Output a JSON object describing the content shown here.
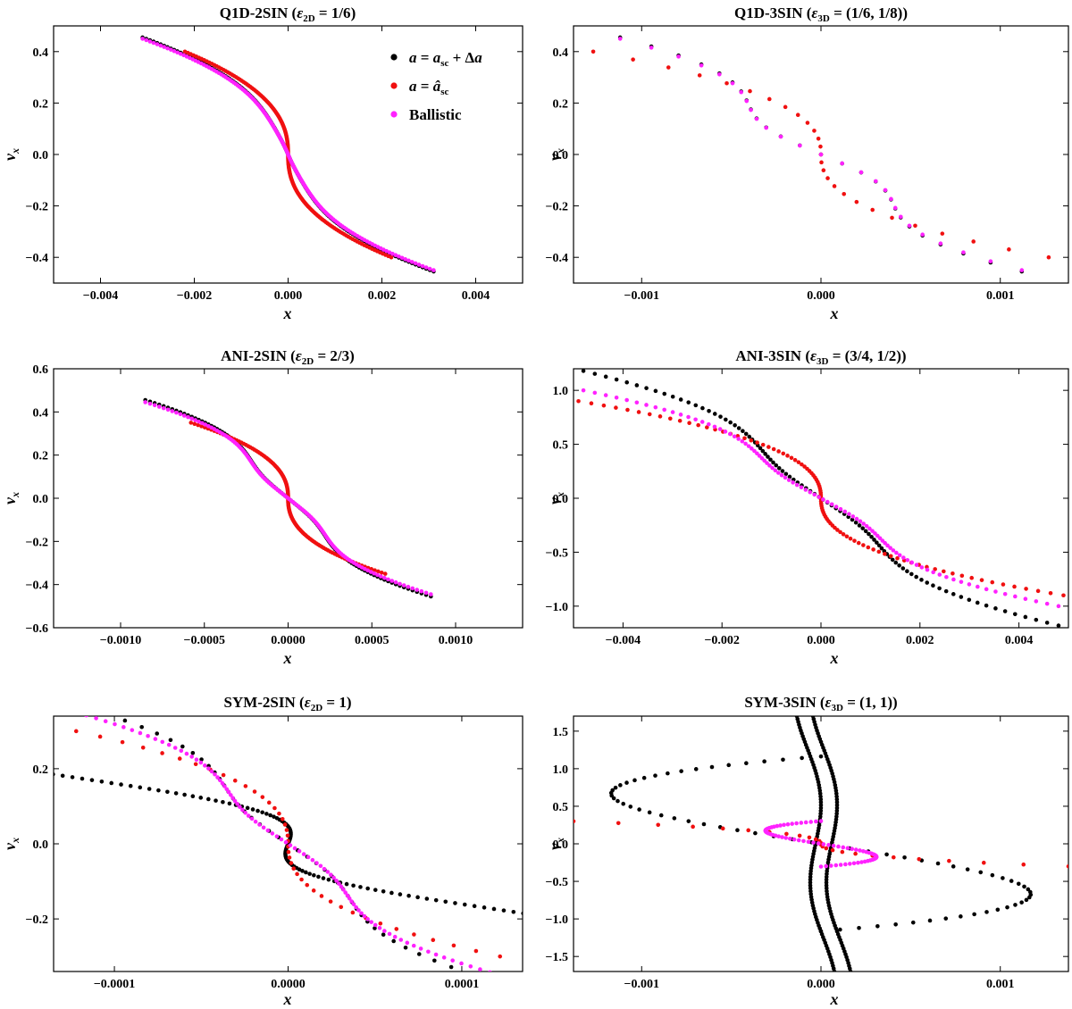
{
  "colors": {
    "black": "#000000",
    "red": "#f01010",
    "magenta": "#ff22ff"
  },
  "legend": {
    "entries": [
      {
        "series": "black",
        "label": "a = a_sc + Δa"
      },
      {
        "series": "red",
        "label": "a = â_sc"
      },
      {
        "series": "magenta",
        "label": "Ballistic"
      }
    ],
    "location": "top-right of first panel"
  },
  "chart_data": [
    {
      "type": "scatter",
      "title": "Q1D-2SIN (ε2D = 1/6)",
      "title_parts": {
        "name": "Q1D-2SIN",
        "sym": "ε",
        "sub": "2D",
        "rhs": " = 1/6"
      },
      "xlabel": "x",
      "ylabel": "v_x",
      "xlim": [
        -0.005,
        0.005
      ],
      "ylim": [
        -0.5,
        0.5
      ],
      "xticks": [
        -0.004,
        -0.002,
        0.0,
        0.002,
        0.004
      ],
      "xtick_labels": [
        "−0.004",
        "−0.002",
        "0.000",
        "0.002",
        "0.004"
      ],
      "yticks": [
        -0.4,
        -0.2,
        0.0,
        0.2,
        0.4
      ],
      "ytick_labels": [
        "−0.4",
        "−0.2",
        "0.0",
        "0.2",
        "0.4"
      ],
      "series": [
        {
          "name": "a = a_sc + Δa",
          "color": "black",
          "model": "sigmoid",
          "A": 0.455,
          "width": 0.0031,
          "hook": 0.00101,
          "n": 170
        },
        {
          "name": "a = â_sc",
          "color": "red",
          "model": "sigmoid",
          "A": 0.4,
          "width": 0.0022,
          "hook": 0,
          "n": 170
        },
        {
          "name": "Ballistic",
          "color": "magenta",
          "model": "sigmoid",
          "A": 0.45,
          "width": 0.0031,
          "hook": 0.00101,
          "n": 170
        }
      ]
    },
    {
      "type": "scatter",
      "title": "Q1D-3SIN (ε3D = (1/6, 1/8))",
      "title_parts": {
        "name": "Q1D-3SIN",
        "sym": "ε",
        "sub": "3D",
        "rhs": " = (1/6, 1/8)"
      },
      "xlabel": "x",
      "ylabel": "v_x",
      "xlim": [
        -0.00138,
        0.00138
      ],
      "ylim": [
        -0.5,
        0.5
      ],
      "xticks": [
        -0.001,
        0.0,
        0.001
      ],
      "xtick_labels": [
        "−0.001",
        "0.000",
        "0.001"
      ],
      "yticks": [
        -0.4,
        -0.2,
        0.0,
        0.2,
        0.4
      ],
      "ytick_labels": [
        "−0.4",
        "−0.2",
        "0.0",
        "0.2",
        "0.4"
      ],
      "series": [
        {
          "name": "a = a_sc + Δa",
          "color": "black",
          "model": "sigmoid",
          "A": 0.455,
          "width": 0.00075,
          "hook": 0.00103,
          "n": 27,
          "xmax": 0.00112
        },
        {
          "name": "a = â_sc",
          "color": "red",
          "model": "sigmoid",
          "A": 0.4,
          "width": 0.00055,
          "hook": 0,
          "n": 27,
          "xmax": 0.00127
        },
        {
          "name": "Ballistic",
          "color": "magenta",
          "model": "sigmoid",
          "A": 0.45,
          "width": 0.00075,
          "hook": 0.00103,
          "n": 27,
          "xmax": 0.00112
        }
      ]
    },
    {
      "type": "scatter",
      "title": "ANI-2SIN (ε2D = 2/3)",
      "title_parts": {
        "name": "ANI-2SIN",
        "sym": "ε",
        "sub": "2D",
        "rhs": " = 2/3"
      },
      "xlabel": "x",
      "ylabel": "v_x",
      "xlim": [
        -0.0014,
        0.0014
      ],
      "ylim": [
        -0.6,
        0.6
      ],
      "xticks": [
        -0.001,
        -0.0005,
        0.0,
        0.0005,
        0.001
      ],
      "xtick_labels": [
        "−0.0010",
        "−0.0005",
        "0.0000",
        "0.0005",
        "0.0010"
      ],
      "yticks": [
        -0.6,
        -0.4,
        -0.2,
        0.0,
        0.2,
        0.4,
        0.6
      ],
      "ytick_labels": [
        "−0.6",
        "−0.4",
        "−0.2",
        "0.0",
        "0.2",
        "0.4",
        "0.6"
      ],
      "series": [
        {
          "name": "a = a_sc + Δa",
          "color": "black",
          "model": "sigmoid",
          "A": 0.455,
          "width": 0.00085,
          "hook": 0.00071,
          "n": 130
        },
        {
          "name": "a = â_sc",
          "color": "red",
          "model": "sigmoid",
          "A": 0.35,
          "width": 0.00058,
          "hook": 0,
          "n": 130
        },
        {
          "name": "Ballistic",
          "color": "magenta",
          "model": "sigmoid",
          "A": 0.445,
          "width": 0.00085,
          "hook": 0.00071,
          "n": 130
        }
      ]
    },
    {
      "type": "scatter",
      "title": "ANI-3SIN (ε3D = (3/4, 1/2))",
      "title_parts": {
        "name": "ANI-3SIN",
        "sym": "ε",
        "sub": "3D",
        "rhs": " = (3/4, 1/2)"
      },
      "xlabel": "x",
      "ylabel": "v_x",
      "xlim": [
        -0.005,
        0.005
      ],
      "ylim": [
        -1.2,
        1.2
      ],
      "xticks": [
        -0.004,
        -0.002,
        0.0,
        0.002,
        0.004
      ],
      "xtick_labels": [
        "−0.004",
        "−0.002",
        "0.000",
        "0.002",
        "0.004"
      ],
      "yticks": [
        -1.0,
        -0.5,
        0.0,
        0.5,
        1.0
      ],
      "ytick_labels": [
        "−1.0",
        "−0.5",
        "0.0",
        "0.5",
        "1.0"
      ],
      "series": [
        {
          "name": "a = a_sc + Δa",
          "color": "black",
          "model": "sigmoid",
          "A": 1.18,
          "width": 0.0055,
          "hook": 0.0043,
          "n": 90,
          "xmax": 0.0048
        },
        {
          "name": "a = â_sc",
          "color": "red",
          "model": "sigmoid",
          "A": 0.9,
          "width": 0.0022,
          "hook": 0,
          "n": 90,
          "xmax": 0.0049
        },
        {
          "name": "Ballistic",
          "color": "magenta",
          "model": "sigmoid",
          "A": 1.0,
          "width": 0.0048,
          "hook": 0.00385,
          "n": 90,
          "xmax": 0.0048
        }
      ]
    },
    {
      "type": "scatter",
      "title": "SYM-2SIN (ε2D = 1)",
      "title_parts": {
        "name": "SYM-2SIN",
        "sym": "ε",
        "sub": "2D",
        "rhs": " = 1"
      },
      "xlabel": "x",
      "ylabel": "v_x",
      "xlim": [
        -0.000135,
        0.000135
      ],
      "ylim": [
        -0.34,
        0.34
      ],
      "xticks": [
        -0.0001,
        0.0,
        0.0001
      ],
      "xtick_labels": [
        "−0.0001",
        "0.0000",
        "0.0001"
      ],
      "yticks": [
        -0.2,
        0.0,
        0.2
      ],
      "ytick_labels": [
        "−0.2",
        "0.0",
        "0.2"
      ],
      "series": [
        {
          "name": "a = a_sc + Δa",
          "color": "black",
          "model": "sigmoid",
          "A": 0.38,
          "width": 0.000205,
          "hook": 0.000192,
          "n": 45,
          "xmax": 0.000128
        },
        {
          "name": "a = a_sc + Δa",
          "color": "black",
          "model": "swave",
          "yrange": [
            -0.31,
            0.31
          ],
          "amp": 4.2e-05,
          "freq": 1.2,
          "slope": -0.00021,
          "n": 160
        },
        {
          "name": "a = â_sc",
          "color": "red",
          "model": "sigmoid",
          "A": 0.3,
          "width": 0.00032,
          "hook": 0,
          "n": 42,
          "xmax": 0.000122
        },
        {
          "name": "Ballistic",
          "color": "magenta",
          "model": "sigmoid",
          "A": 0.35,
          "width": 0.000195,
          "hook": 0.000182,
          "n": 90,
          "xmax": 0.000122
        }
      ]
    },
    {
      "type": "scatter",
      "title": "SYM-3SIN (ε3D = (1, 1))",
      "title_parts": {
        "name": "SYM-3SIN",
        "sym": "ε",
        "sub": "3D",
        "rhs": " = (1, 1)"
      },
      "xlabel": "x",
      "ylabel": "v_x",
      "xlim": [
        -0.00138,
        0.00138
      ],
      "ylim": [
        -1.7,
        1.7
      ],
      "xticks": [
        -0.001,
        0.0,
        0.001
      ],
      "xtick_labels": [
        "−0.001",
        "0.000",
        "0.001"
      ],
      "yticks": [
        -1.5,
        -1.0,
        -0.5,
        0.0,
        0.5,
        1.0,
        1.5
      ],
      "ytick_labels": [
        "−1.5",
        "−1.0",
        "−0.5",
        "0.0",
        "0.5",
        "1.0",
        "1.5"
      ],
      "series": [
        {
          "name": "a = a_sc + Δa",
          "color": "black",
          "model": "swave",
          "yrange": [
            -1.7,
            1.7
          ],
          "amp": 5e-05,
          "freq": 0.9,
          "slope": -6e-05,
          "offset": -3e-05,
          "n": 90
        },
        {
          "name": "a = a_sc + Δa",
          "color": "black",
          "model": "swave",
          "yrange": [
            -1.7,
            1.7
          ],
          "amp": 5e-05,
          "freq": 0.9,
          "slope": -6e-05,
          "offset": 6e-05,
          "n": 90
        },
        {
          "name": "a = a_sc + Δa",
          "color": "black",
          "model": "sshape",
          "hw": 0.00117,
          "ymax": 1.3,
          "wmax": 0.85,
          "n": 70
        },
        {
          "name": "a = â_sc",
          "color": "red",
          "model": "sigmoid",
          "A": 0.3,
          "width": 0.0012,
          "hook": 0,
          "n": 26,
          "xmax": 0.00138
        },
        {
          "name": "Ballistic",
          "color": "magenta",
          "model": "sshape",
          "hw": 0.00031,
          "ymax": 0.8,
          "wmax": 0.36,
          "n": 70
        }
      ]
    }
  ]
}
